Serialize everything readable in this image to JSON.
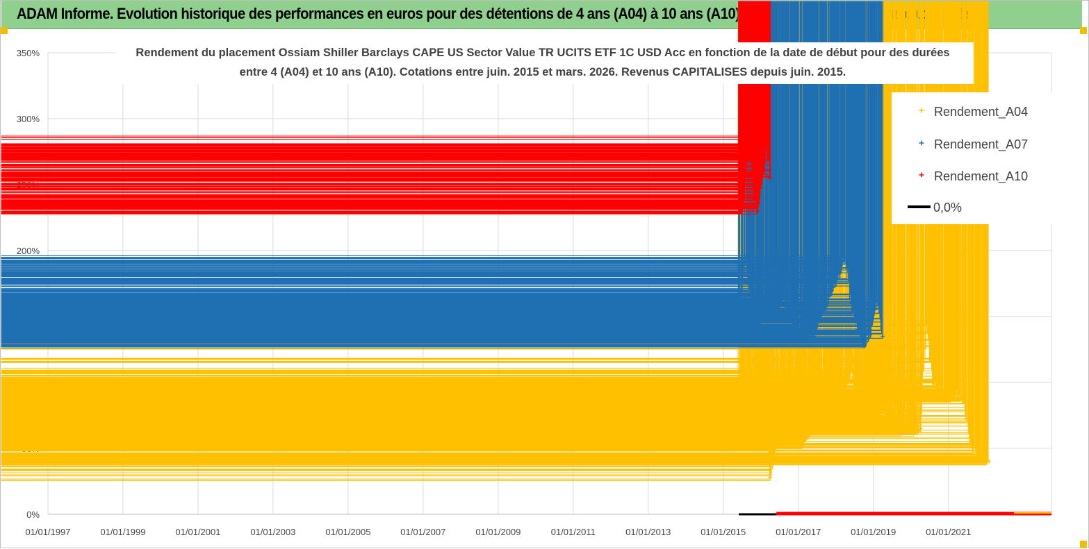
{
  "banner": {
    "title": "ADAM Informe. Evolution historique des performances en euros pour des détentions de 4 ans (A04) à 10 ans (A10) avec les revenus connus capitalisés"
  },
  "chart_data": {
    "type": "scatter",
    "title_lines": [
      "Rendement du placement Ossiam Shiller Barclays CAPE US Sector Value TR UCITS ETF 1C USD Acc en fonction de la date de début pour des durées",
      "entre 4 (A04) et 10 ans (A10). Cotations entre juin. 2015 et mars. 2026. Revenus CAPITALISES depuis juin. 2015."
    ],
    "xlabel": "",
    "ylabel": "",
    "xlim": [
      "1997-01-01",
      "2023-10-01"
    ],
    "ylim": [
      0,
      3.5
    ],
    "x_tick_labels": [
      "01/01/1997",
      "01/01/1999",
      "01/01/2001",
      "01/01/2003",
      "01/01/2005",
      "01/01/2007",
      "01/01/2009",
      "01/01/2011",
      "01/01/2013",
      "01/01/2015",
      "01/01/2017",
      "01/01/2019",
      "01/01/2021"
    ],
    "y_ticks": [
      {
        "value": 0,
        "label": "0%"
      },
      {
        "value": 0.5,
        "label": "50%"
      },
      {
        "value": 1.0,
        "label": "100%"
      },
      {
        "value": 1.5,
        "label": "150%"
      },
      {
        "value": 2.0,
        "label": "200%"
      },
      {
        "value": 2.5,
        "label": "250%"
      },
      {
        "value": 3.0,
        "label": "300%"
      },
      {
        "value": 3.5,
        "label": "350%"
      }
    ],
    "grid": true,
    "legend_position": "top-right",
    "series": [
      {
        "name": "Rendement_A04",
        "color": "#ffc000",
        "marker": "plus",
        "x": [
          "2015-06",
          "2015-08",
          "2015-10",
          "2015-12",
          "2016-02",
          "2016-04",
          "2016-06",
          "2016-08",
          "2016-10",
          "2016-12",
          "2017-02",
          "2017-04",
          "2017-06",
          "2017-08",
          "2017-10",
          "2017-12",
          "2018-02",
          "2018-04",
          "2018-06",
          "2018-08",
          "2018-10",
          "2018-12",
          "2019-02",
          "2019-04",
          "2019-06",
          "2019-08",
          "2019-10",
          "2019-12",
          "2020-02",
          "2020-04",
          "2020-06",
          "2020-08",
          "2020-10",
          "2020-12",
          "2021-02",
          "2021-04",
          "2021-06",
          "2021-08",
          "2021-10",
          "2021-12",
          "2022-02"
        ],
        "values": [
          0.63,
          0.8,
          0.7,
          0.76,
          0.98,
          0.28,
          0.56,
          0.6,
          0.56,
          0.58,
          0.53,
          0.6,
          0.7,
          0.82,
          0.93,
          0.92,
          0.98,
          0.95,
          1.1,
          0.8,
          0.82,
          0.75,
          0.78,
          0.79,
          0.7,
          0.72,
          0.62,
          0.68,
          0.62,
          0.65,
          1.48,
          1.0,
          0.95,
          0.9,
          0.88,
          0.92,
          0.85,
          0.55,
          0.45,
          0.42,
          0.4
        ]
      },
      {
        "name": "Rendement_A07",
        "color": "#1f6fb3",
        "marker": "plus",
        "x": [
          "2015-06",
          "2015-08",
          "2015-10",
          "2015-12",
          "2016-02",
          "2016-04",
          "2016-06",
          "2016-08",
          "2016-10",
          "2016-12",
          "2017-02",
          "2017-04",
          "2017-06",
          "2017-08",
          "2017-10",
          "2017-12",
          "2018-02",
          "2018-04",
          "2018-06",
          "2018-08",
          "2018-10",
          "2018-12",
          "2019-02",
          "2019-04"
        ],
        "values": [
          1.5,
          1.95,
          1.6,
          1.38,
          1.55,
          1.62,
          1.48,
          1.65,
          1.5,
          1.4,
          1.32,
          1.38,
          1.35,
          1.5,
          1.58,
          1.72,
          1.8,
          1.95,
          1.6,
          1.4,
          1.28,
          1.36,
          1.62,
          1.35
        ]
      },
      {
        "name": "Rendement_A10",
        "color": "#ff0000",
        "marker": "plus",
        "x": [
          "2015-06",
          "2015-07",
          "2015-08",
          "2015-09",
          "2015-10",
          "2015-11",
          "2015-12",
          "2016-01",
          "2016-02",
          "2016-03",
          "2016-04"
        ],
        "values": [
          2.38,
          2.3,
          2.55,
          2.78,
          2.7,
          2.4,
          2.3,
          2.48,
          2.62,
          2.85,
          2.55
        ]
      },
      {
        "name": "0,0%",
        "color": "#000000",
        "marker": "line",
        "x": [
          "2015-06",
          "2023-10"
        ],
        "values": [
          0,
          0
        ]
      }
    ]
  }
}
